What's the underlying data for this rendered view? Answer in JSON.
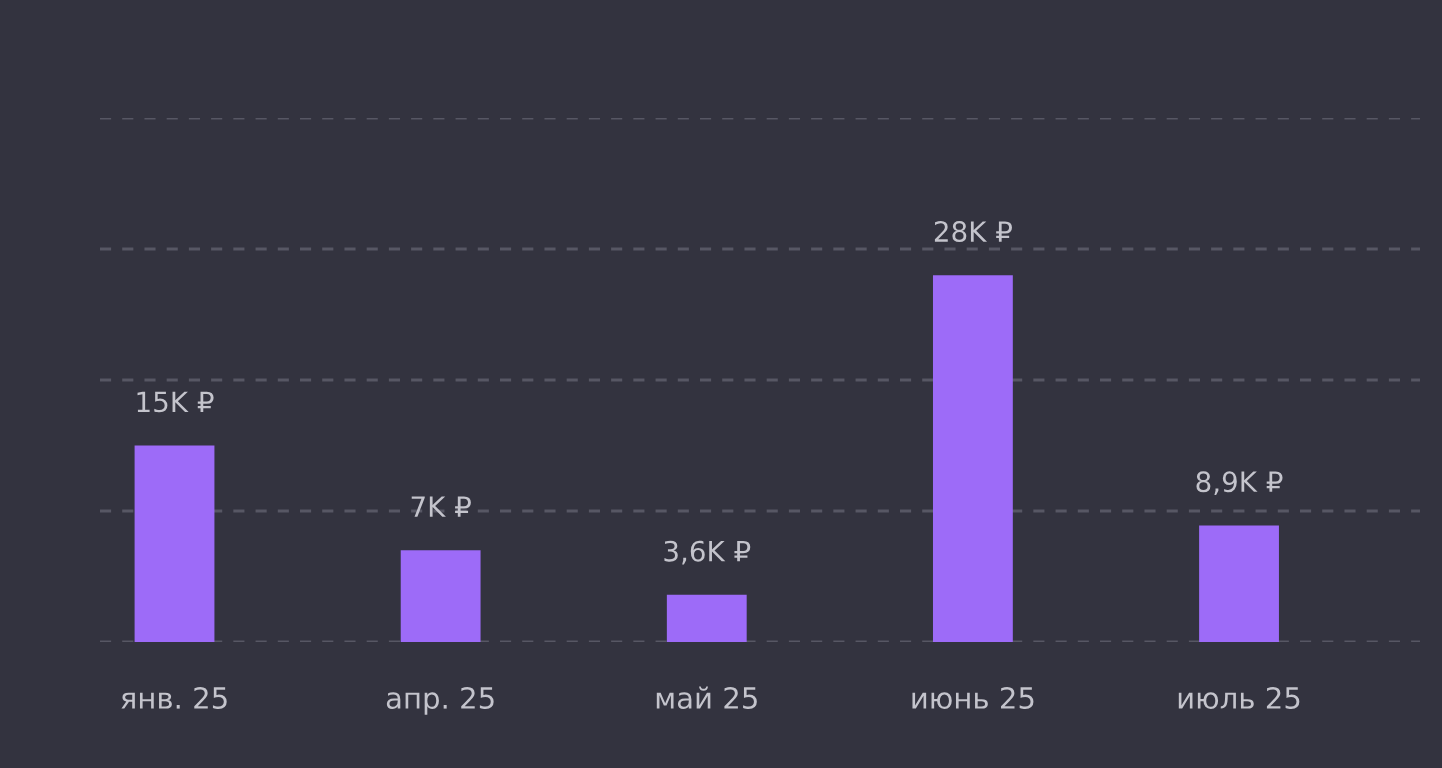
{
  "chart_data": {
    "type": "bar",
    "categories": [
      "янв. 25",
      "апр. 25",
      "май 25",
      "июнь 25",
      "июль 25"
    ],
    "values": [
      15,
      7,
      3.6,
      28,
      8.9
    ],
    "value_labels": [
      "15K ₽",
      "7K ₽",
      "3,6K ₽",
      "28K ₽",
      "8,9K ₽"
    ],
    "color": "#9d6bf8",
    "ylim": [
      0,
      40
    ],
    "yticks": [
      {
        "value": 0,
        "label": null
      },
      {
        "value": 10,
        "label": null
      },
      {
        "value": 20,
        "label": null
      },
      {
        "value": 30,
        "label": null
      },
      {
        "value": 40,
        "label": null
      }
    ],
    "grid": "y",
    "tick_labels": "x",
    "legend": false
  }
}
